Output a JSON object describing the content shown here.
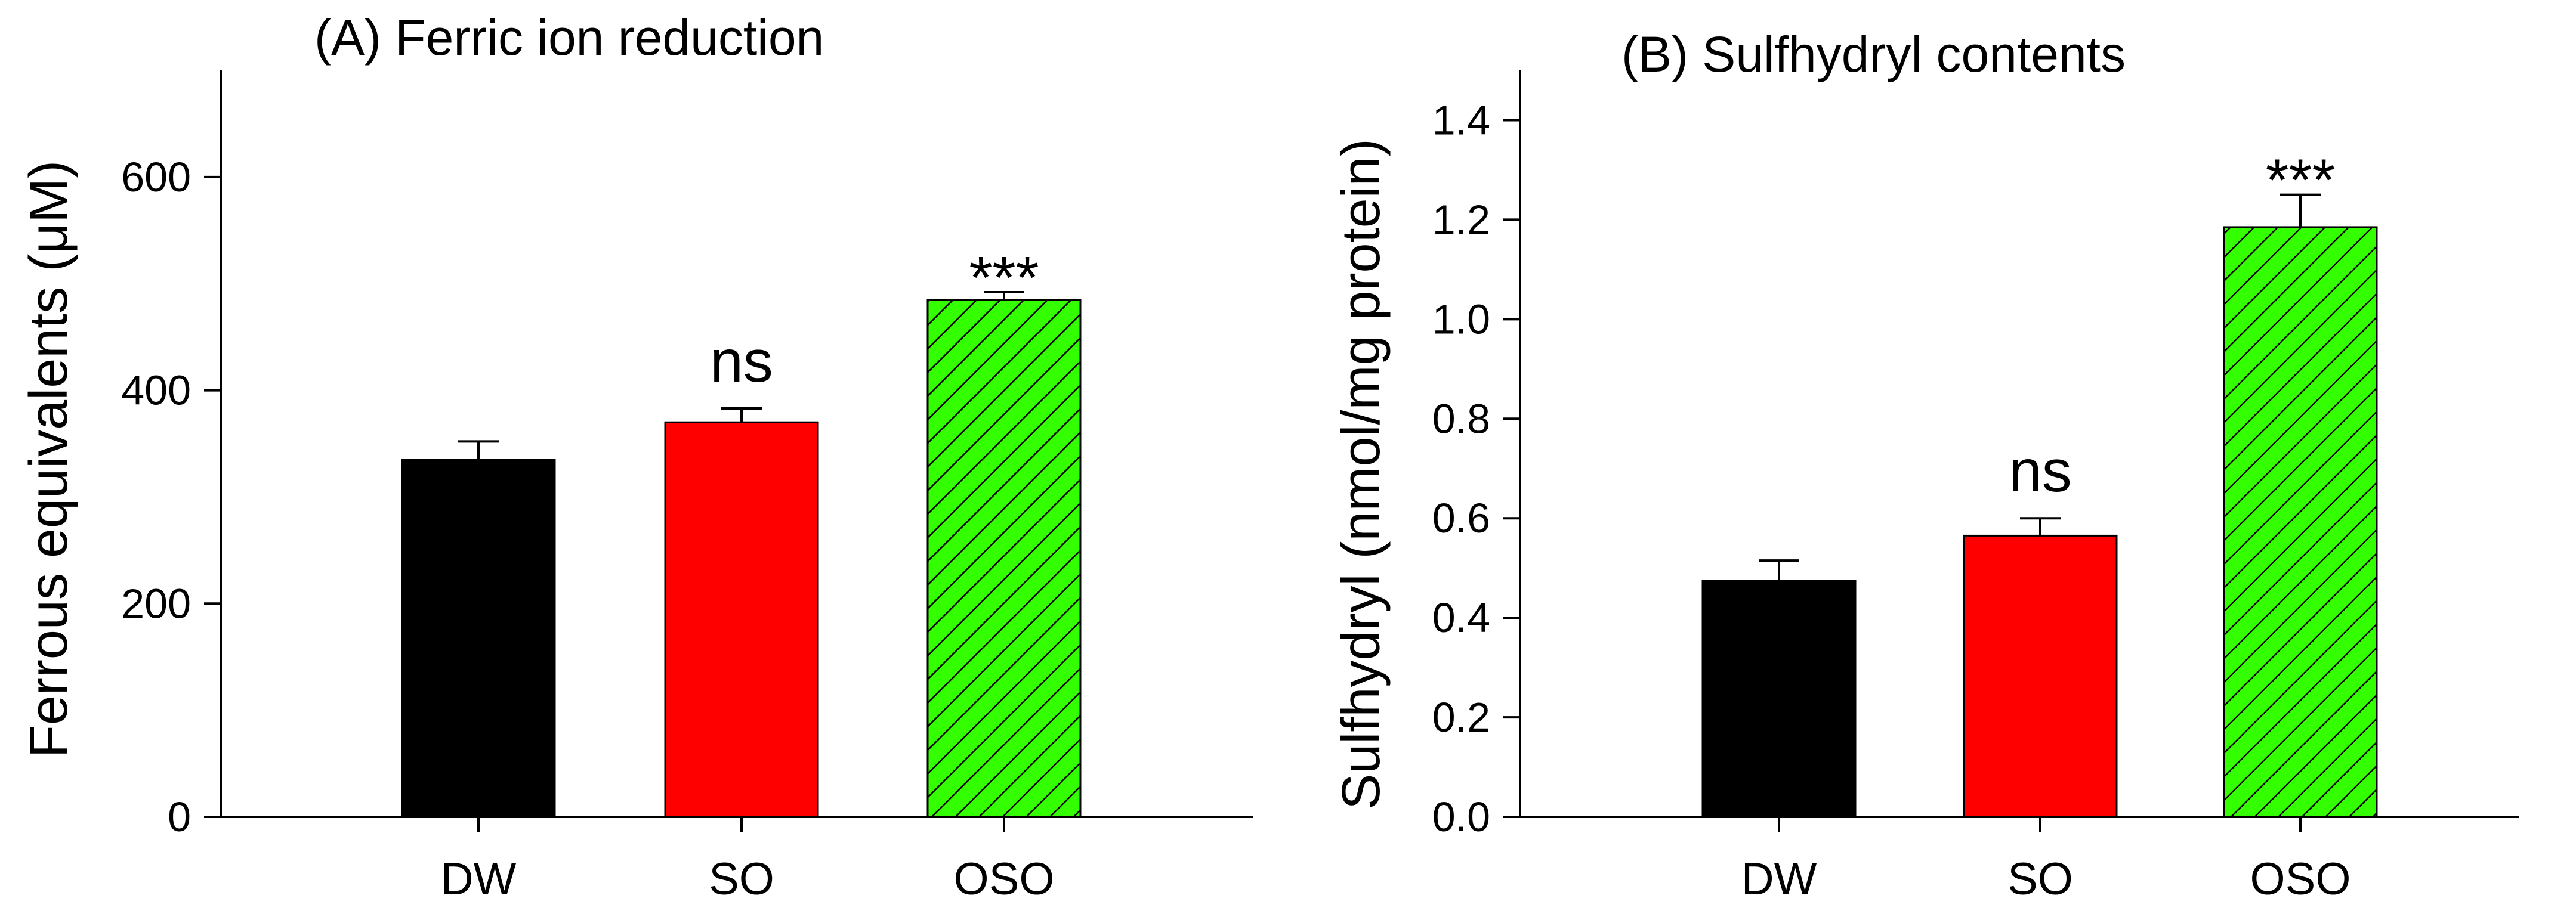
{
  "chart_data": [
    {
      "type": "bar",
      "title": "(A) Ferric ion reduction",
      "ylabel": "Ferrous equivalents (μM)",
      "xlabel": "",
      "categories": [
        "DW",
        "SO",
        "OSO"
      ],
      "values": [
        335,
        370,
        485
      ],
      "errors": [
        17,
        13,
        7
      ],
      "significance": [
        "",
        "ns",
        "***"
      ],
      "colors": [
        "#000000",
        "#ff0000",
        "#33ff00"
      ],
      "hatched": [
        false,
        false,
        true
      ],
      "ylim": [
        0,
        700
      ],
      "yticks": [
        0,
        200,
        400,
        600
      ],
      "ytick_labels": [
        "0",
        "200",
        "400",
        "600"
      ]
    },
    {
      "type": "bar",
      "title": "(B) Sulfhydryl contents",
      "ylabel": "Sulfhydryl (nmol/mg protein)",
      "xlabel": "",
      "categories": [
        "DW",
        "SO",
        "OSO"
      ],
      "values": [
        0.475,
        0.565,
        1.185
      ],
      "errors": [
        0.04,
        0.035,
        0.065
      ],
      "significance": [
        "",
        "ns",
        "***"
      ],
      "colors": [
        "#000000",
        "#ff0000",
        "#33ff00"
      ],
      "hatched": [
        false,
        false,
        true
      ],
      "ylim": [
        0,
        1.5
      ],
      "yticks": [
        0,
        0.2,
        0.4,
        0.6,
        0.8,
        1.0,
        1.2,
        1.4
      ],
      "ytick_labels": [
        "0.0",
        "0.2",
        "0.4",
        "0.6",
        "0.8",
        "1.0",
        "1.2",
        "1.4"
      ]
    }
  ]
}
